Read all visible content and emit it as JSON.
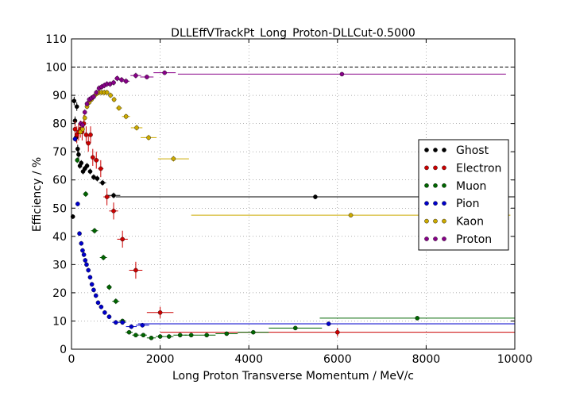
{
  "chart_data": {
    "type": "scatter",
    "title": "DLLEffVTrackPt_Long_Proton-DLLCut-0.5000",
    "xlabel": "Long Proton Transverse Momentum / MeV/c",
    "ylabel": "Efficiency / %",
    "xlim": [
      0,
      10000
    ],
    "ylim": [
      0,
      110
    ],
    "xticks": [
      0,
      2000,
      4000,
      6000,
      8000,
      10000
    ],
    "yticks": [
      0,
      10,
      20,
      30,
      40,
      50,
      60,
      70,
      80,
      90,
      100,
      110
    ],
    "grid": true,
    "reference_line": 100,
    "legend_position": "right",
    "series": [
      {
        "name": "Ghost",
        "color": "#000000",
        "points": [
          [
            30,
            47,
            30,
            0.8
          ],
          [
            60,
            88,
            30,
            1.5
          ],
          [
            80,
            81,
            30,
            1.5
          ],
          [
            100,
            75,
            30,
            1.5
          ],
          [
            120,
            86,
            30,
            1.5
          ],
          [
            140,
            71,
            30,
            1.5
          ],
          [
            160,
            69,
            30,
            1.5
          ],
          [
            190,
            65,
            30,
            1
          ],
          [
            220,
            66,
            30,
            1
          ],
          [
            260,
            63,
            30,
            1
          ],
          [
            300,
            64,
            30,
            1
          ],
          [
            350,
            65,
            30,
            1
          ],
          [
            420,
            63,
            50,
            1
          ],
          [
            500,
            61,
            50,
            1
          ],
          [
            580,
            60.5,
            50,
            1
          ],
          [
            700,
            59,
            80,
            1
          ],
          [
            950,
            54.5,
            150,
            1
          ],
          [
            5500,
            54,
            4500,
            0.8
          ]
        ]
      },
      {
        "name": "Electron",
        "color": "#cc0000",
        "points": [
          [
            80,
            78,
            40,
            3
          ],
          [
            120,
            76,
            40,
            3
          ],
          [
            160,
            77,
            40,
            3
          ],
          [
            200,
            78,
            40,
            3
          ],
          [
            240,
            77,
            40,
            3
          ],
          [
            280,
            80,
            40,
            3
          ],
          [
            330,
            76,
            40,
            3
          ],
          [
            380,
            73,
            40,
            3
          ],
          [
            430,
            76,
            40,
            3
          ],
          [
            480,
            68,
            50,
            3
          ],
          [
            560,
            67,
            60,
            3
          ],
          [
            660,
            64,
            60,
            3
          ],
          [
            800,
            54,
            80,
            3
          ],
          [
            950,
            49,
            100,
            3
          ],
          [
            1150,
            39,
            120,
            3
          ],
          [
            1450,
            28,
            150,
            3
          ],
          [
            2000,
            13,
            300,
            2
          ],
          [
            6000,
            6,
            4000,
            1.5
          ]
        ]
      },
      {
        "name": "Muon",
        "color": "#006600",
        "points": [
          [
            130,
            67,
            40,
            1
          ],
          [
            320,
            55,
            60,
            1
          ],
          [
            520,
            42,
            80,
            1
          ],
          [
            720,
            32.5,
            80,
            1
          ],
          [
            850,
            22,
            60,
            1
          ],
          [
            1000,
            17,
            80,
            1
          ],
          [
            1150,
            10,
            80,
            0.8
          ],
          [
            1300,
            6,
            80,
            0.6
          ],
          [
            1450,
            5,
            80,
            0.6
          ],
          [
            1620,
            5,
            80,
            0.6
          ],
          [
            1800,
            4,
            100,
            0.5
          ],
          [
            2000,
            4.5,
            100,
            0.5
          ],
          [
            2200,
            4.5,
            100,
            0.5
          ],
          [
            2450,
            5,
            150,
            0.5
          ],
          [
            2700,
            5,
            150,
            0.5
          ],
          [
            3050,
            5,
            200,
            0.5
          ],
          [
            3500,
            5.5,
            250,
            0.5
          ],
          [
            4100,
            6,
            350,
            0.5
          ],
          [
            5050,
            7.5,
            600,
            0.5
          ],
          [
            7800,
            11,
            2200,
            0.5
          ]
        ]
      },
      {
        "name": "Pion",
        "color": "#0000cc",
        "points": [
          [
            80,
            74.5,
            20,
            0.8
          ],
          [
            140,
            51.5,
            20,
            0.8
          ],
          [
            180,
            41,
            20,
            0.8
          ],
          [
            220,
            37.5,
            20,
            0.8
          ],
          [
            250,
            35,
            20,
            0.8
          ],
          [
            280,
            33.5,
            20,
            0.8
          ],
          [
            310,
            31.5,
            20,
            0.8
          ],
          [
            340,
            30,
            20,
            0.8
          ],
          [
            380,
            28,
            20,
            0.8
          ],
          [
            420,
            25.5,
            20,
            0.8
          ],
          [
            460,
            23,
            20,
            0.8
          ],
          [
            500,
            21,
            20,
            0.8
          ],
          [
            550,
            19,
            25,
            0.8
          ],
          [
            600,
            16.5,
            25,
            0.8
          ],
          [
            670,
            15,
            30,
            0.8
          ],
          [
            750,
            13,
            40,
            0.8
          ],
          [
            850,
            11.5,
            50,
            0.8
          ],
          [
            1000,
            9.5,
            80,
            0.8
          ],
          [
            1150,
            9.5,
            80,
            0.8
          ],
          [
            1350,
            8,
            120,
            0.8
          ],
          [
            1600,
            8.5,
            150,
            0.8
          ],
          [
            5800,
            9,
            4300,
            0.5
          ]
        ]
      },
      {
        "name": "Kaon",
        "color": "#ccaa00",
        "points": [
          [
            200,
            77,
            40,
            1
          ],
          [
            250,
            78,
            40,
            1
          ],
          [
            300,
            82,
            40,
            1
          ],
          [
            350,
            86,
            40,
            1
          ],
          [
            400,
            87.5,
            40,
            1
          ],
          [
            450,
            88.5,
            40,
            1
          ],
          [
            500,
            89.5,
            40,
            1
          ],
          [
            560,
            90.5,
            40,
            1
          ],
          [
            620,
            91,
            40,
            1
          ],
          [
            680,
            91,
            40,
            1
          ],
          [
            740,
            91,
            40,
            1
          ],
          [
            800,
            91,
            40,
            1
          ],
          [
            880,
            90,
            50,
            1
          ],
          [
            960,
            88.5,
            50,
            1
          ],
          [
            1070,
            85.5,
            70,
            1
          ],
          [
            1230,
            82.5,
            90,
            1
          ],
          [
            1470,
            78.5,
            130,
            1
          ],
          [
            1740,
            75,
            180,
            1
          ],
          [
            2300,
            67.5,
            350,
            1
          ],
          [
            6300,
            47.5,
            3600,
            0.5
          ]
        ]
      },
      {
        "name": "Proton",
        "color": "#880088",
        "points": [
          [
            210,
            80,
            40,
            1
          ],
          [
            250,
            79.5,
            40,
            1
          ],
          [
            300,
            84,
            40,
            1
          ],
          [
            350,
            87,
            40,
            1
          ],
          [
            400,
            88.5,
            40,
            1
          ],
          [
            450,
            89,
            40,
            1
          ],
          [
            500,
            89.5,
            40,
            1
          ],
          [
            560,
            91,
            40,
            1
          ],
          [
            620,
            92.5,
            40,
            1
          ],
          [
            680,
            93,
            40,
            1
          ],
          [
            740,
            93.5,
            40,
            1
          ],
          [
            800,
            94,
            40,
            1
          ],
          [
            870,
            94,
            50,
            1
          ],
          [
            950,
            94.5,
            50,
            1
          ],
          [
            1030,
            96,
            60,
            1
          ],
          [
            1130,
            95.5,
            70,
            1
          ],
          [
            1230,
            95,
            80,
            1
          ],
          [
            1450,
            97,
            120,
            1
          ],
          [
            1700,
            96.5,
            150,
            0.8
          ],
          [
            2100,
            98,
            250,
            0.8
          ],
          [
            6100,
            97.5,
            3700,
            0.5
          ]
        ]
      }
    ]
  }
}
